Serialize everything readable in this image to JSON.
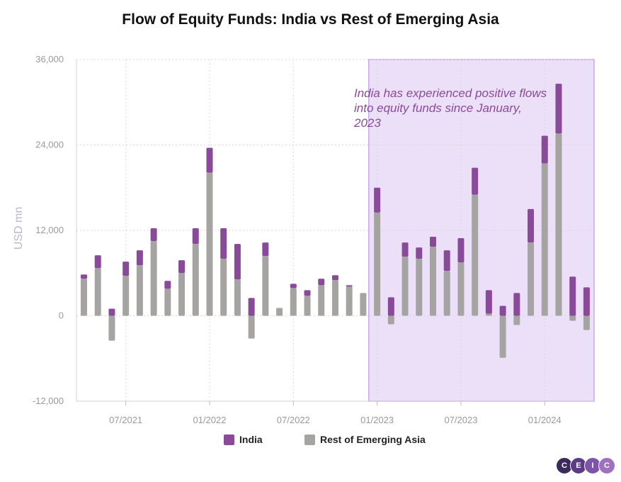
{
  "chart_data": {
    "type": "bar",
    "stacked": true,
    "title": "Flow of Equity Funds: India vs Rest of Emerging Asia",
    "ylabel": "USD mn",
    "ylim": [
      -12000,
      36000
    ],
    "yticks": [
      "36,000",
      "24,000",
      "12,000",
      "0",
      "-12,000"
    ],
    "ytick_values": [
      36000,
      24000,
      12000,
      0,
      -12000
    ],
    "xtick_labels": [
      "07/2021",
      "01/2022",
      "07/2022",
      "01/2023",
      "07/2023",
      "01/2024"
    ],
    "categories": [
      "2021-04",
      "2021-05",
      "2021-06",
      "2021-07",
      "2021-08",
      "2021-09",
      "2021-10",
      "2021-11",
      "2021-12",
      "2022-01",
      "2022-02",
      "2022-03",
      "2022-04",
      "2022-05",
      "2022-06",
      "2022-07",
      "2022-08",
      "2022-09",
      "2022-10",
      "2022-11",
      "2022-12",
      "2023-01",
      "2023-02",
      "2023-03",
      "2023-04",
      "2023-05",
      "2023-06",
      "2023-07",
      "2023-08",
      "2023-09",
      "2023-10",
      "2023-11",
      "2023-12",
      "2024-01",
      "2024-02",
      "2024-03",
      "2024-04"
    ],
    "series": [
      {
        "name": "India",
        "color": "#8a4a9a",
        "values": [
          600,
          1800,
          1000,
          2000,
          2100,
          1800,
          1100,
          1800,
          2200,
          3500,
          4300,
          5000,
          2500,
          1900,
          0,
          600,
          800,
          900,
          700,
          200,
          0,
          3500,
          2600,
          2000,
          1600,
          1400,
          2900,
          3400,
          3800,
          3300,
          1400,
          3200,
          4700,
          3900,
          7000,
          5500,
          4000
        ]
      },
      {
        "name": "Rest of Emerging Asia",
        "color": "#a6a4a2",
        "values": [
          5200,
          6700,
          -3500,
          5600,
          7100,
          10500,
          3800,
          6000,
          10100,
          20100,
          8000,
          5100,
          -3200,
          8400,
          1100,
          3900,
          2800,
          4300,
          5000,
          4100,
          3200,
          14500,
          -1200,
          8300,
          8000,
          9700,
          6300,
          7500,
          17000,
          300,
          -5900,
          -1300,
          10300,
          21400,
          25600,
          -700,
          -2000
        ]
      }
    ],
    "highlight_start": "2023-01",
    "highlight_color": "#ecdff8",
    "annotation": "India has experienced positive flows into equity funds since January, 2023",
    "annotation_lines": [
      "India has experienced positive flows",
      "into equity funds since January,",
      "2023"
    ],
    "legend_position": "bottom",
    "grid": true
  },
  "legend": {
    "india": "India",
    "rest": "Rest of Emerging Asia"
  },
  "logo": {
    "letters": [
      "C",
      "E",
      "I",
      "C"
    ],
    "colors": [
      "#3b2a5c",
      "#5a3d86",
      "#7d55a8",
      "#a070c0"
    ]
  }
}
